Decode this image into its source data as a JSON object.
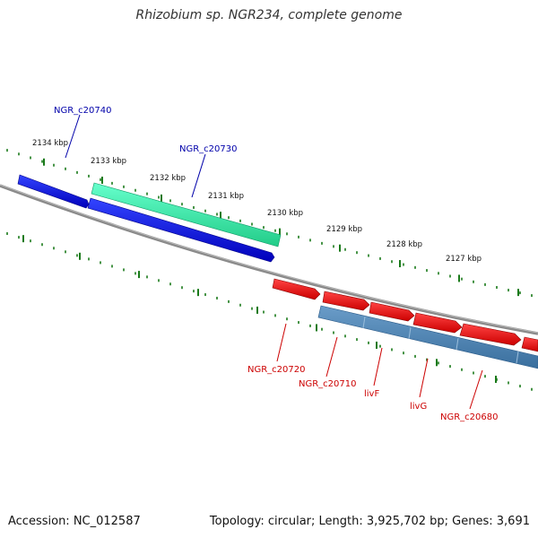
{
  "title": "Rhizobium sp. NGR234, complete genome",
  "footer": {
    "accession": "Accession: NC_012587",
    "summary": "Topology: circular; Length: 3,925,702 bp; Genes: 3,691"
  },
  "scale_labels": [
    "2134 kbp",
    "2133 kbp",
    "2132 kbp",
    "2131 kbp",
    "2130 kbp",
    "2129 kbp",
    "2128 kbp",
    "2127 kbp"
  ],
  "genes": [
    {
      "name": "NGR_c20740",
      "strand": "reverse",
      "color": "#0000cc"
    },
    {
      "name": "NGR_c20730",
      "strand": "reverse",
      "color": "#0000cc"
    },
    {
      "name": "NGR_c20720",
      "strand": "forward",
      "color": "#cc0000"
    },
    {
      "name": "NGR_c20710",
      "strand": "forward",
      "color": "#cc0000"
    },
    {
      "name": "livF",
      "strand": "forward",
      "color": "#cc0000"
    },
    {
      "name": "livG",
      "strand": "forward",
      "color": "#cc0000"
    },
    {
      "name": "NGR_c20680",
      "strand": "forward",
      "color": "#cc0000"
    }
  ],
  "colors": {
    "reverse_cds": "#0000e6",
    "forward_cds": "#ff0000",
    "rna_feature": "#33e6a0",
    "gene_feature": "#4682b4",
    "backbone": "#808080",
    "tick": "#1a7a1a"
  }
}
